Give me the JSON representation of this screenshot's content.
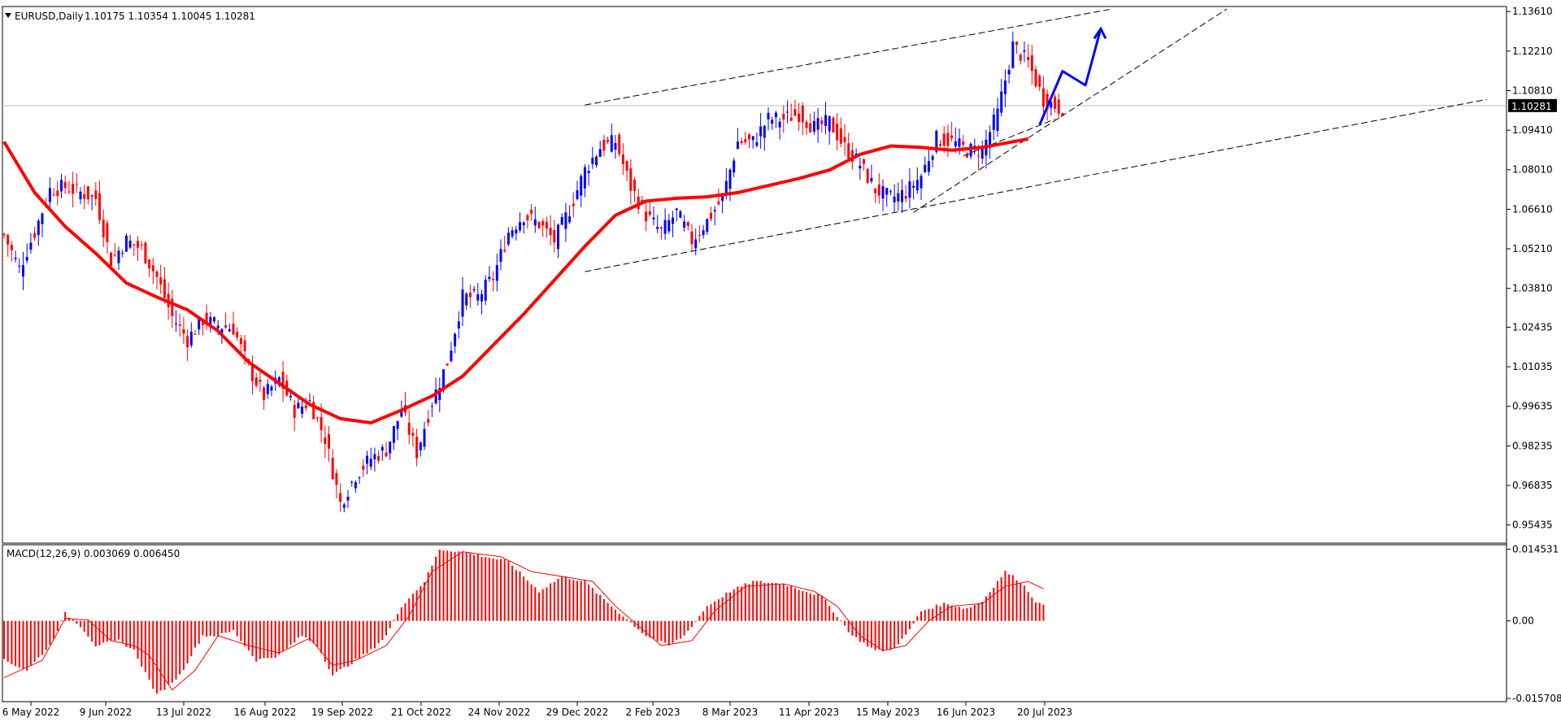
{
  "chart_data": [
    {
      "type": "candlestick",
      "symbol_header": "EURUSD,Daily",
      "ohlc_header": "1.10175 1.10354 1.10045 1.10281",
      "current_price_label": "1.10281",
      "y_ticks": [
        "1.13610",
        "1.12210",
        "1.10810",
        "1.09410",
        "1.08010",
        "1.06610",
        "1.05210",
        "1.03810",
        "1.02435",
        "1.01035",
        "0.99635",
        "0.98235",
        "0.96835",
        "0.95435"
      ],
      "ylim": [
        0.9485,
        1.1373
      ],
      "x_ticks": [
        "6 May 2022",
        "9 Jun 2022",
        "13 Jul 2022",
        "16 Aug 2022",
        "19 Sep 2022",
        "21 Oct 2022",
        "24 Nov 2022",
        "29 Dec 2022",
        "2 Feb 2023",
        "8 Mar 2023",
        "11 Apr 2023",
        "15 May 2023",
        "16 Jun 2023",
        "20 Jul 2023"
      ],
      "colors": {
        "bull": "#0000ff",
        "bear": "#ff0000",
        "ma": "#ff0000",
        "annotation": "#0000ff",
        "trendline": "#000000"
      },
      "moving_average_path": [
        [
          0,
          1.09
        ],
        [
          8,
          1.072
        ],
        [
          16,
          1.06
        ],
        [
          24,
          1.0505
        ],
        [
          32,
          1.04
        ],
        [
          40,
          1.035
        ],
        [
          48,
          1.0305
        ],
        [
          56,
          1.023
        ],
        [
          64,
          1.012
        ],
        [
          72,
          1.0045
        ],
        [
          80,
          0.997
        ],
        [
          88,
          0.992
        ],
        [
          96,
          0.9905
        ],
        [
          104,
          0.995
        ],
        [
          112,
          1.0
        ],
        [
          120,
          1.007
        ],
        [
          128,
          1.018
        ],
        [
          136,
          1.029
        ],
        [
          144,
          1.041
        ],
        [
          152,
          1.053
        ],
        [
          160,
          1.064
        ],
        [
          168,
          1.069
        ],
        [
          176,
          1.07
        ],
        [
          184,
          1.0705
        ],
        [
          192,
          1.072
        ],
        [
          200,
          1.0745
        ],
        [
          208,
          1.077
        ],
        [
          216,
          1.08
        ],
        [
          224,
          1.0855
        ],
        [
          232,
          1.0885
        ],
        [
          240,
          1.088
        ],
        [
          248,
          1.087
        ],
        [
          256,
          1.088
        ],
        [
          262,
          1.0895
        ],
        [
          268,
          1.091
        ]
      ],
      "candle_anchors": [
        [
          0,
          1.057
        ],
        [
          4,
          1.045
        ],
        [
          8,
          1.058
        ],
        [
          12,
          1.073
        ],
        [
          16,
          1.074
        ],
        [
          20,
          1.072
        ],
        [
          24,
          1.07
        ],
        [
          28,
          1.048
        ],
        [
          32,
          1.055
        ],
        [
          36,
          1.052
        ],
        [
          40,
          1.042
        ],
        [
          44,
          1.028
        ],
        [
          48,
          1.02
        ],
        [
          52,
          1.027
        ],
        [
          56,
          1.025
        ],
        [
          60,
          1.024
        ],
        [
          64,
          1.01
        ],
        [
          68,
          1.0
        ],
        [
          72,
          1.006
        ],
        [
          76,
          0.995
        ],
        [
          80,
          0.998
        ],
        [
          84,
          0.985
        ],
        [
          88,
          0.962
        ],
        [
          92,
          0.972
        ],
        [
          96,
          0.978
        ],
        [
          100,
          0.981
        ],
        [
          104,
          0.995
        ],
        [
          108,
          0.98
        ],
        [
          112,
          0.998
        ],
        [
          116,
          1.012
        ],
        [
          120,
          1.035
        ],
        [
          124,
          1.035
        ],
        [
          128,
          1.042
        ],
        [
          132,
          1.058
        ],
        [
          136,
          1.064
        ],
        [
          140,
          1.061
        ],
        [
          144,
          1.055
        ],
        [
          148,
          1.066
        ],
        [
          152,
          1.08
        ],
        [
          156,
          1.088
        ],
        [
          160,
          1.09
        ],
        [
          164,
          1.074
        ],
        [
          168,
          1.064
        ],
        [
          172,
          1.058
        ],
        [
          176,
          1.065
        ],
        [
          180,
          1.055
        ],
        [
          184,
          1.062
        ],
        [
          188,
          1.07
        ],
        [
          192,
          1.09
        ],
        [
          196,
          1.09
        ],
        [
          200,
          1.098
        ],
        [
          204,
          1.098
        ],
        [
          208,
          1.1
        ],
        [
          212,
          1.095
        ],
        [
          216,
          1.097
        ],
        [
          220,
          1.088
        ],
        [
          224,
          1.082
        ],
        [
          228,
          1.073
        ],
        [
          232,
          1.07
        ],
        [
          236,
          1.072
        ],
        [
          240,
          1.078
        ],
        [
          244,
          1.091
        ],
        [
          248,
          1.09
        ],
        [
          252,
          1.087
        ],
        [
          256,
          1.087
        ],
        [
          260,
          1.1
        ],
        [
          264,
          1.124
        ],
        [
          268,
          1.118
        ],
        [
          272,
          1.105
        ],
        [
          276,
          1.102
        ]
      ],
      "trendlines": [
        [
          [
            152,
            1.103
          ],
          [
            290,
            1.137
          ]
        ],
        [
          [
            152,
            1.044
          ],
          [
            388,
            1.105
          ]
        ],
        [
          [
            238,
            1.065
          ],
          [
            320,
            1.137
          ]
        ],
        [
          [
            251,
            1.085
          ],
          [
            275,
            1.098
          ]
        ]
      ],
      "projection_path": [
        [
          271,
          1.096
        ],
        [
          277,
          1.115
        ],
        [
          283,
          1.11
        ],
        [
          287,
          1.13
        ]
      ]
    },
    {
      "type": "bar",
      "indicator_header": "MACD(12,26,9) 0.003069 0.006450",
      "y_ticks": [
        "0.014531",
        "0.00",
        "-0.015708"
      ],
      "ylim": [
        -0.0162,
        0.0151
      ],
      "macd_anchors": [
        [
          0,
          -0.008
        ],
        [
          6,
          -0.01
        ],
        [
          12,
          -0.005
        ],
        [
          16,
          0.0015
        ],
        [
          20,
          -0.001
        ],
        [
          24,
          -0.005
        ],
        [
          30,
          -0.004
        ],
        [
          34,
          -0.006
        ],
        [
          40,
          -0.015
        ],
        [
          46,
          -0.011
        ],
        [
          52,
          -0.003
        ],
        [
          56,
          -0.003
        ],
        [
          60,
          -0.002
        ],
        [
          66,
          -0.008
        ],
        [
          72,
          -0.007
        ],
        [
          78,
          -0.003
        ],
        [
          82,
          -0.005
        ],
        [
          86,
          -0.011
        ],
        [
          90,
          -0.009
        ],
        [
          96,
          -0.006
        ],
        [
          100,
          -0.003
        ],
        [
          104,
          0.003
        ],
        [
          110,
          0.008
        ],
        [
          114,
          0.0145
        ],
        [
          120,
          0.014
        ],
        [
          126,
          0.013
        ],
        [
          132,
          0.012
        ],
        [
          140,
          0.006
        ],
        [
          146,
          0.009
        ],
        [
          152,
          0.008
        ],
        [
          156,
          0.005
        ],
        [
          162,
          0.001
        ],
        [
          168,
          -0.003
        ],
        [
          174,
          -0.005
        ],
        [
          178,
          -0.003
        ],
        [
          184,
          0.003
        ],
        [
          190,
          0.006
        ],
        [
          196,
          0.008
        ],
        [
          204,
          0.0075
        ],
        [
          210,
          0.006
        ],
        [
          214,
          0.005
        ],
        [
          218,
          0.001
        ],
        [
          222,
          -0.003
        ],
        [
          228,
          -0.006
        ],
        [
          232,
          -0.006
        ],
        [
          236,
          -0.003
        ],
        [
          240,
          0.002
        ],
        [
          246,
          0.0035
        ],
        [
          252,
          0.0025
        ],
        [
          256,
          0.004
        ],
        [
          262,
          0.01
        ],
        [
          266,
          0.008
        ],
        [
          270,
          0.004
        ],
        [
          272,
          0.003
        ]
      ],
      "signal_anchors": [
        [
          0,
          -0.0115
        ],
        [
          10,
          -0.008
        ],
        [
          16,
          0.0005
        ],
        [
          22,
          0.0002
        ],
        [
          28,
          -0.004
        ],
        [
          34,
          -0.005
        ],
        [
          38,
          -0.007
        ],
        [
          44,
          -0.014
        ],
        [
          50,
          -0.01
        ],
        [
          56,
          -0.003
        ],
        [
          64,
          -0.005
        ],
        [
          72,
          -0.0065
        ],
        [
          80,
          -0.0035
        ],
        [
          86,
          -0.009
        ],
        [
          92,
          -0.008
        ],
        [
          100,
          -0.005
        ],
        [
          106,
          0.001
        ],
        [
          112,
          0.01
        ],
        [
          120,
          0.014
        ],
        [
          130,
          0.013
        ],
        [
          138,
          0.01
        ],
        [
          146,
          0.009
        ],
        [
          154,
          0.008
        ],
        [
          160,
          0.003
        ],
        [
          166,
          -0.001
        ],
        [
          172,
          -0.005
        ],
        [
          180,
          -0.004
        ],
        [
          186,
          0.002
        ],
        [
          194,
          0.007
        ],
        [
          204,
          0.0075
        ],
        [
          212,
          0.006
        ],
        [
          218,
          0.003
        ],
        [
          224,
          -0.003
        ],
        [
          230,
          -0.006
        ],
        [
          236,
          -0.005
        ],
        [
          242,
          0.0
        ],
        [
          248,
          0.003
        ],
        [
          256,
          0.0035
        ],
        [
          262,
          0.007
        ],
        [
          268,
          0.008
        ],
        [
          272,
          0.0065
        ]
      ]
    }
  ]
}
